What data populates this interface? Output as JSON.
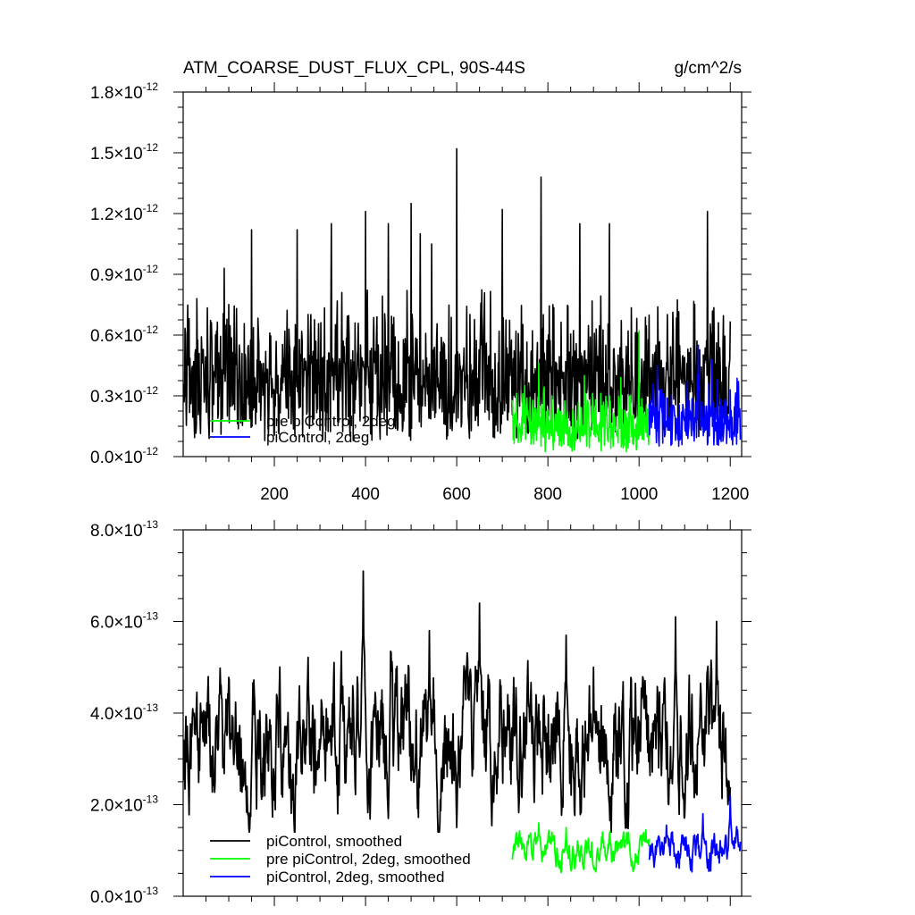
{
  "chart_data": [
    {
      "type": "line",
      "title": "ATM_COARSE_DUST_FLUX_CPL, 90S-44S",
      "units": "g/cm^2/s",
      "xlim": [
        0,
        1225
      ],
      "ylim": [
        0,
        1.8e-12
      ],
      "x_ticks": [
        200,
        400,
        600,
        800,
        1000,
        1200
      ],
      "x_tick_labels": [
        "200",
        "400",
        "600",
        "800",
        "1000",
        "1200"
      ],
      "y_ticks": [
        0,
        3e-13,
        6e-13,
        9e-13,
        1.2e-12,
        1.5e-12,
        1.8e-12
      ],
      "y_tick_mantissas": [
        "0.0",
        "0.3",
        "0.6",
        "0.9",
        "1.2",
        "1.5",
        "1.8"
      ],
      "y_tick_times": "×10",
      "y_tick_exponent": "-12",
      "legend": {
        "placement": "bottom-left",
        "entries": [
          "pre piControl, 2deg",
          "piControl, 2deg"
        ]
      },
      "series": [
        {
          "name": "piControl",
          "color": "#000000",
          "x_start": 1,
          "x_end": 1200,
          "baseline": 3e-13,
          "amplitude": 2.8e-13,
          "min": 3e-14,
          "max": 1.52e-12,
          "peaks": [
            [
              600,
              1.52e-12
            ],
            [
              785,
              1.38e-12
            ],
            [
              500,
              1.25e-12
            ],
            [
              400,
              1.21e-12
            ],
            [
              700,
              1.22e-12
            ],
            [
              1150,
              1.21e-12
            ],
            [
              325,
              1.15e-12
            ],
            [
              150,
              1.12e-12
            ],
            [
              250,
              1.12e-12
            ],
            [
              450,
              1.15e-12
            ],
            [
              870,
              1.15e-12
            ],
            [
              935,
              1.15e-12
            ],
            [
              520,
              1.1e-12
            ],
            [
              545,
              1.05e-12
            ],
            [
              90,
              9.3e-13
            ],
            [
              30,
              7.8e-13
            ]
          ]
        },
        {
          "name": "pre piControl, 2deg",
          "color": "#00ff00",
          "x_start": 722,
          "x_end": 1022,
          "baseline": 1.2e-13,
          "amplitude": 1.2e-13,
          "min": 0,
          "max": 6.2e-13,
          "peaks": [
            [
              1000,
              6.2e-13
            ],
            [
              780,
              4.6e-13
            ],
            [
              880,
              4e-13
            ],
            [
              960,
              3.9e-13
            ]
          ]
        },
        {
          "name": "piControl, 2deg",
          "color": "#0000ff",
          "x_start": 1022,
          "x_end": 1222,
          "baseline": 1.5e-13,
          "amplitude": 1.3e-13,
          "min": 0,
          "max": 5.5e-13,
          "peaks": [
            [
              1130,
              5.5e-13
            ],
            [
              1160,
              4.8e-13
            ],
            [
              1040,
              4.5e-13
            ],
            [
              1200,
              3.3e-13
            ]
          ]
        }
      ]
    },
    {
      "type": "line",
      "xlim": [
        0,
        1225
      ],
      "ylim": [
        0,
        8e-13
      ],
      "x_ticks": [
        200,
        400,
        600,
        800,
        1000,
        1200
      ],
      "y_ticks": [
        0,
        2e-13,
        4e-13,
        6e-13,
        8e-13
      ],
      "y_tick_mantissas": [
        "0.0",
        "2.0",
        "4.0",
        "6.0",
        "8.0"
      ],
      "y_tick_times": "×10",
      "y_tick_exponent": "-13",
      "legend": {
        "placement": "bottom-left",
        "entries": [
          "piControl, smoothed",
          "pre piControl, 2deg, smoothed",
          "piControl, 2deg, smoothed"
        ]
      },
      "series": [
        {
          "name": "piControl, smoothed",
          "color": "#000000",
          "x_start": 1,
          "x_end": 1200,
          "baseline": 3.4e-13,
          "amplitude": 1e-13,
          "min": 1.4e-13,
          "max": 7.1e-13,
          "peaks": [
            [
              395,
              7.1e-13
            ],
            [
              650,
              6.4e-13
            ],
            [
              1080,
              6.1e-13
            ],
            [
              1170,
              6e-13
            ],
            [
              540,
              5.8e-13
            ],
            [
              840,
              5.7e-13
            ],
            [
              45,
              4.05e-13
            ],
            [
              900,
              5e-13
            ]
          ],
          "troughs": [
            [
              145,
              1.4e-13
            ],
            [
              600,
              1.5e-13
            ],
            [
              1195,
              2e-13
            ],
            [
              450,
              1.7e-13
            ]
          ]
        },
        {
          "name": "pre piControl, 2deg, smoothed",
          "color": "#00ff00",
          "x_start": 722,
          "x_end": 1022,
          "baseline": 1e-13,
          "amplitude": 2.5e-14,
          "min": 3e-14,
          "max": 1.6e-13,
          "peaks": [
            [
              780,
              1.6e-13
            ],
            [
              840,
              1.5e-13
            ],
            [
              1015,
              1.45e-13
            ]
          ]
        },
        {
          "name": "piControl, 2deg, smoothed",
          "color": "#0000ff",
          "x_start": 1022,
          "x_end": 1222,
          "baseline": 1e-13,
          "amplitude": 2.8e-14,
          "min": 4e-14,
          "max": 2.2e-13,
          "peaks": [
            [
              1200,
              2.2e-13
            ],
            [
              1140,
              1.8e-13
            ],
            [
              1060,
              1.55e-13
            ]
          ]
        }
      ]
    }
  ]
}
